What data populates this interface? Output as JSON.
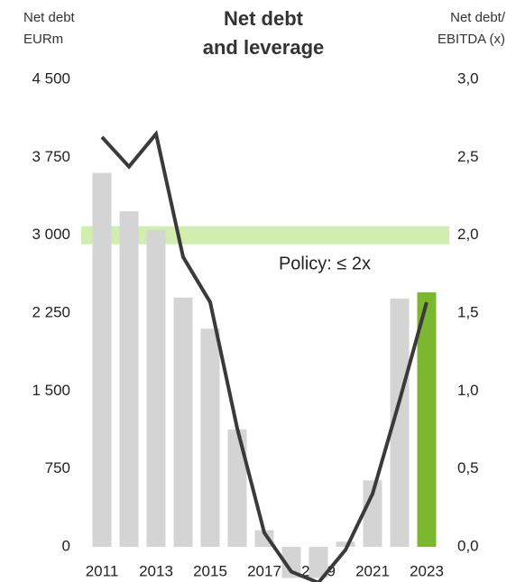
{
  "chart_data": {
    "type": "bar_line",
    "title": [
      "Net debt",
      "and leverage"
    ],
    "y_label": [
      "Net debt",
      "EURm"
    ],
    "y2_label": [
      "Net debt/",
      "EBITDA (x)"
    ],
    "categories": [
      "2011",
      null,
      "2013",
      null,
      "2015",
      null,
      "2017",
      null,
      "2019",
      null,
      "2021",
      null,
      "2023"
    ],
    "ylim": [
      0,
      4500
    ],
    "yticks": [
      {
        "value": 0,
        "label": "0"
      },
      {
        "value": 750,
        "label": "750"
      },
      {
        "value": 1500,
        "label": "1 500"
      },
      {
        "value": 2250,
        "label": "2 250"
      },
      {
        "value": 3000,
        "label": "3 000"
      },
      {
        "value": 3750,
        "label": "3 750"
      },
      {
        "value": 4500,
        "label": "4 500"
      }
    ],
    "y2lim": [
      0,
      3
    ],
    "y2ticks": [
      {
        "value": 0,
        "label": "0,0"
      },
      {
        "value": 0.5,
        "label": "0,5"
      },
      {
        "value": 1,
        "label": "1,0"
      },
      {
        "value": 1.5,
        "label": "1,5"
      },
      {
        "value": 2,
        "label": "2,0"
      },
      {
        "value": 2.5,
        "label": "2,5"
      },
      {
        "value": 3,
        "label": "3,0"
      }
    ],
    "series": [
      {
        "kind": "bar",
        "colors": [
          "#d4d4d4",
          "#d4d4d4",
          "#d4d4d4",
          "#d4d4d4",
          "#d4d4d4",
          "#d4d4d4",
          "#d4d4d4",
          "#d4d4d4",
          "#d4d4d4",
          "#d4d4d4",
          "#d4d4d4",
          "#d4d4d4",
          "#7cb82f"
        ],
        "values": [
          3600,
          3230,
          3050,
          2400,
          2100,
          1130,
          160,
          -300,
          -300,
          50,
          640,
          2390,
          2450
        ]
      },
      {
        "kind": "line",
        "axis": "y2",
        "color": "#3a3a3a",
        "values": [
          2.63,
          2.44,
          2.65,
          1.86,
          1.57,
          0.76,
          0.09,
          -0.16,
          -0.23,
          -0.02,
          0.34,
          0.94,
          1.57
        ]
      }
    ],
    "policy": {
      "value": 2,
      "label": "Policy: ≤ 2x",
      "color": "#d2edb0"
    }
  }
}
